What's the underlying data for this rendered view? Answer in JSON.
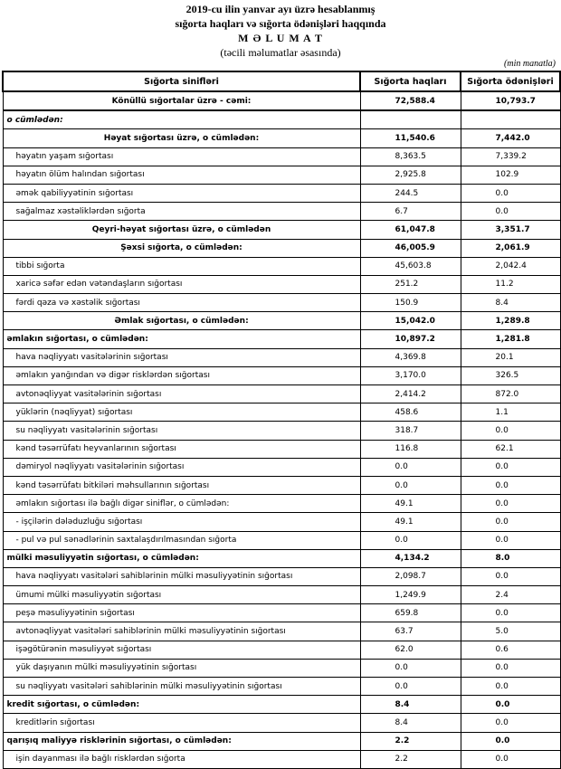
{
  "header": {
    "line1": "2019-cu ilin yanvar ayı üzrə hesablanmış",
    "line2": "sığorta haqları və sığorta ödənişləri haqqında",
    "title": "M Ə L U M A T",
    "subtitle": "(təcili məlumatlar əsasında)",
    "unit": "(min manatla)"
  },
  "table": {
    "columns": [
      "Sığorta sinifləri",
      "Sığorta haqları",
      "Sığorta ödənişləri"
    ],
    "rows": [
      [
        "Könüllü sığortalar üzrə - cəmi:",
        "72,588.4",
        "10,793.7"
      ],
      [
        "o cümlədən:"
      ],
      [
        "Həyat sığortası üzrə, o cümlədən:",
        "11,540.6",
        "7,442.0"
      ],
      [
        "həyatın yaşam sığortası",
        "8,363.5",
        "7,339.2"
      ],
      [
        "həyatın ölüm halından sığortası",
        "2,925.8",
        "102.9"
      ],
      [
        "əmək qabiliyyətinin sığortası",
        "244.5",
        "0.0"
      ],
      [
        "sağalmaz xəstəliklərdən sığorta",
        "6.7",
        "0.0"
      ],
      [
        "Qeyri-həyat sığortası üzrə, o cümlədən",
        "61,047.8",
        "3,351.7"
      ],
      [
        "Şəxsi sığorta,  o cümlədən:",
        "46,005.9",
        "2,061.9"
      ],
      [
        "tibbi sığorta",
        "45,603.8",
        "2,042.4"
      ],
      [
        "xaricə səfər edən vətəndaşların sığortası",
        "251.2",
        "11.2"
      ],
      [
        "fərdi qəza və xəstəlik sığortası",
        "150.9",
        "8.4"
      ],
      [
        "Əmlak sığortası, o cümlədən:",
        "15,042.0",
        "1,289.8"
      ],
      [
        "əmlakın sığortası,  o cümlədən:",
        "10,897.2",
        "1,281.8"
      ],
      [
        "hava nəqliyyatı vasitələrinin sığortası",
        "4,369.8",
        "20.1"
      ],
      [
        "əmlakın yanğından və digər risklərdən sığortası",
        "3,170.0",
        "326.5"
      ],
      [
        "avtonəqliyyat vasitələrinin sığortası",
        "2,414.2",
        "872.0"
      ],
      [
        "yüklərin (nəqliyyat) sığortası",
        "458.6",
        "1.1"
      ],
      [
        "su nəqliyyatı vasitələrinin sığortası",
        "318.7",
        "0.0"
      ],
      [
        "kənd təsərrüfatı heyvanlarının sığortası",
        "116.8",
        "62.1"
      ],
      [
        "dəmiryol nəqliyyatı vasitələrinin sığortası",
        "0.0",
        "0.0"
      ],
      [
        "kənd təsərrüfatı bitkiləri məhsullarının sığortası",
        "0.0",
        "0.0"
      ],
      [
        "əmlakın sığortası ilə bağlı digər siniflər,  o cümlədən:",
        "49.1",
        "0.0"
      ],
      [
        "- işçilərin dələduzluğu sığortası",
        "49.1",
        "0.0"
      ],
      [
        "- pul və pul sənədlərinin saxtalaşdırılmasından sığorta",
        "0.0",
        "0.0"
      ],
      [
        "mülki məsuliyyətin sığortası, o cümlədən:",
        "4,134.2",
        "8.0"
      ],
      [
        "hava nəqliyyatı vasitələri sahiblərinin mülki məsuliyyətinin sığortası",
        "2,098.7",
        "0.0"
      ],
      [
        "ümumi mülki məsuliyyətin sığortası",
        "1,249.9",
        "2.4"
      ],
      [
        "peşə məsuliyyətinin sığortası",
        "659.8",
        "0.0"
      ],
      [
        "avtonəqliyyat vasitələri sahiblərinin mülki məsuliyyətinin sığortası",
        "63.7",
        "5.0"
      ],
      [
        "işəgötürənin məsuliyyət sığortası",
        "62.0",
        "0.6"
      ],
      [
        "yük daşıyanın mülki məsuliyyətinin sığortası",
        "0.0",
        "0.0"
      ],
      [
        "su nəqliyyatı vasitələri sahiblərinin mülki məsuliyyətinin sığortası",
        "0.0",
        "0.0"
      ],
      [
        "kredit sığortası, o cümlədən:",
        "8.4",
        "0.0"
      ],
      [
        "kreditlərin sığortası",
        "8.4",
        "0.0"
      ],
      [
        "qarışıq maliyyə risklərinin sığortası,  o cümlədən:",
        "2.2",
        "0.0"
      ],
      [
        "işin dayanması ilə bağlı risklərdən sığorta",
        "2.2",
        "0.0"
      ]
    ]
  }
}
